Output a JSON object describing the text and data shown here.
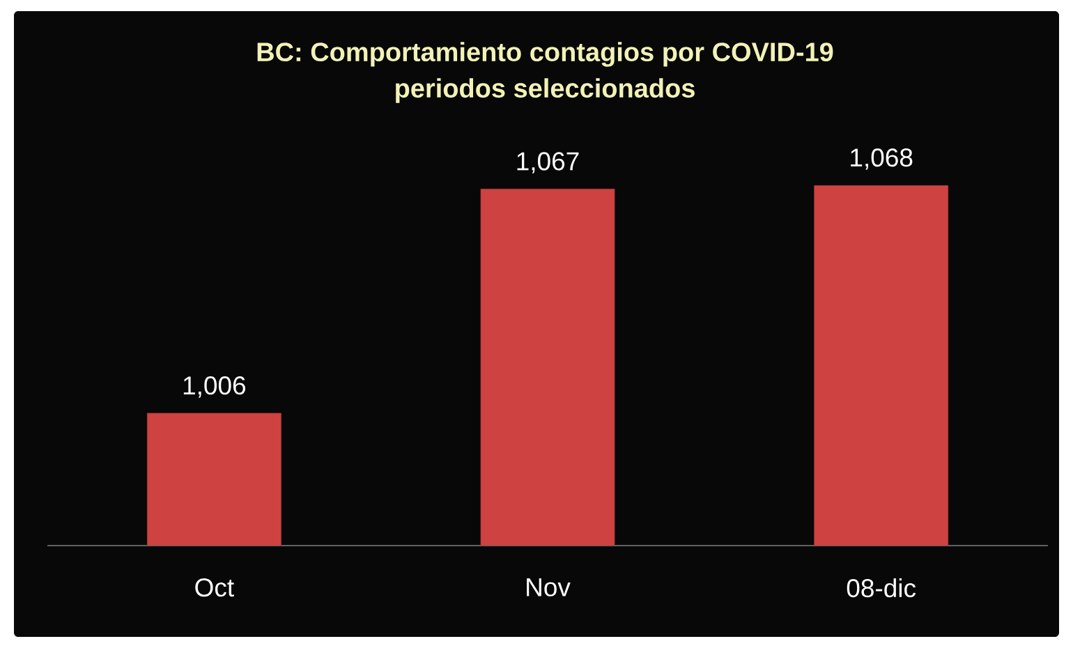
{
  "chart_data": {
    "type": "bar",
    "title": "BC: Comportamiento contagios por COVID-19",
    "subtitle": "periodos seleccionados",
    "categories": [
      "Oct",
      "Nov",
      "08-dic"
    ],
    "values": [
      1006,
      1067,
      1068
    ],
    "color": "#cf4242",
    "value_labels": [
      "1,006",
      "1,067",
      "1,068"
    ],
    "ylim": [
      970,
      1068
    ],
    "tick_labels": "x"
  }
}
